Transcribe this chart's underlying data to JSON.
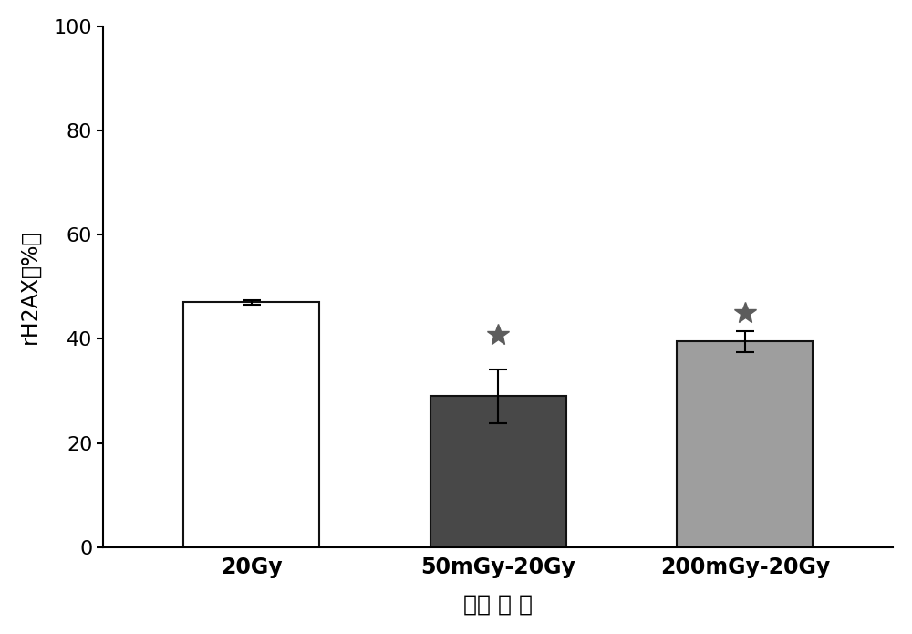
{
  "categories": [
    "20Gy",
    "50mGy-20Gy",
    "200mGy-20Gy"
  ],
  "values": [
    47.0,
    29.0,
    39.5
  ],
  "errors": [
    0.5,
    5.2,
    2.0
  ],
  "bar_colors": [
    "#ffffff",
    "#484848",
    "#9e9e9e"
  ],
  "bar_edge_colors": [
    "#111111",
    "#111111",
    "#111111"
  ],
  "ylabel": "rH2AX（%）",
  "xlabel": "辐照 剂 量",
  "ylim": [
    0,
    100
  ],
  "yticks": [
    0,
    20,
    40,
    60,
    80,
    100
  ],
  "bar_width": 0.55,
  "star_color": "#5c5c5c",
  "background_color": "#ffffff",
  "label_fontsize": 17,
  "tick_fontsize": 16,
  "star_indices": [
    1,
    2
  ],
  "star_offsets": [
    6.5,
    3.5
  ],
  "figsize": [
    10.0,
    6.95
  ],
  "dpi": 100,
  "xlim": [
    -0.6,
    2.6
  ]
}
